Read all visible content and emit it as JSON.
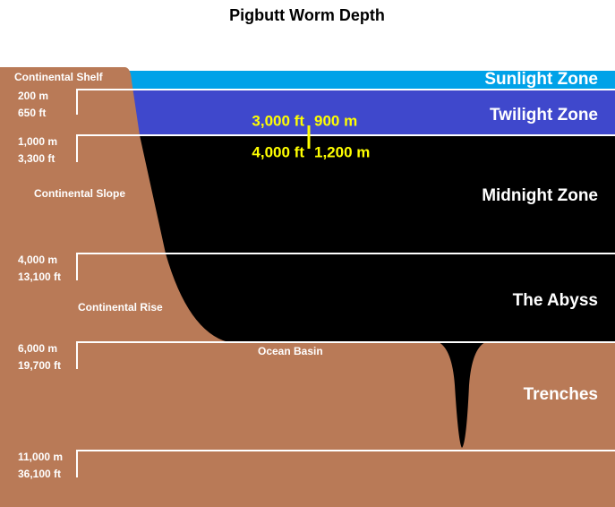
{
  "title": "Pigbutt Worm Depth",
  "zones": [
    "Sunlight Zone",
    "Twilight Zone",
    "Midnight Zone",
    "The Abyss",
    "Trenches"
  ],
  "depth_markers": [
    {
      "meters": "200 m",
      "feet": "650 ft"
    },
    {
      "meters": "1,000 m",
      "feet": "3,300 ft"
    },
    {
      "meters": "4,000 m",
      "feet": "13,100 ft"
    },
    {
      "meters": "6,000 m",
      "feet": "19,700 ft"
    },
    {
      "meters": "11,000 m",
      "feet": "36,100 ft"
    }
  ],
  "features": [
    "Continental Shelf",
    "Continental Slope",
    "Continental Rise",
    "Ocean Basin"
  ],
  "worm_range": {
    "upper": {
      "feet": "3,000 ft",
      "meters": "900 m"
    },
    "lower": {
      "feet": "4,000 ft",
      "meters": "1,200 m"
    }
  }
}
